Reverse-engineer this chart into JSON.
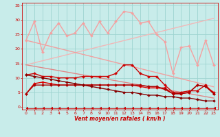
{
  "xlabel": "Vent moyen/en rafales ( km/h )",
  "xlim": [
    -0.5,
    23.5
  ],
  "ylim": [
    -1,
    36
  ],
  "yticks": [
    0,
    5,
    10,
    15,
    20,
    25,
    30,
    35
  ],
  "xticks": [
    0,
    1,
    2,
    3,
    4,
    5,
    6,
    7,
    8,
    9,
    10,
    11,
    12,
    13,
    14,
    15,
    16,
    17,
    18,
    19,
    20,
    21,
    22,
    23
  ],
  "bg_color": "#c8ecea",
  "grid_color": "#9dd4d0",
  "lines": [
    {
      "y": [
        14.5,
        15.2,
        15.9,
        16.6,
        17.3,
        18.0,
        18.7,
        19.4,
        20.1,
        20.8,
        21.5,
        22.2,
        22.9,
        23.6,
        24.3,
        25.0,
        25.7,
        26.4,
        27.1,
        27.8,
        28.5,
        29.2,
        29.9,
        30.6
      ],
      "color": "#f0b8b8",
      "lw": 1.0,
      "marker": null,
      "alpha": 1.0
    },
    {
      "y": [
        23.0,
        22.3,
        21.6,
        20.9,
        20.2,
        19.5,
        18.8,
        18.1,
        17.4,
        16.7,
        16.0,
        15.3,
        14.6,
        13.9,
        13.2,
        12.5,
        11.8,
        11.1,
        10.4,
        9.7,
        9.0,
        8.3,
        7.6,
        6.9
      ],
      "color": "#f0a0a0",
      "lw": 1.0,
      "marker": null,
      "alpha": 1.0
    },
    {
      "y": [
        14.5,
        14.0,
        13.5,
        13.0,
        12.5,
        12.0,
        11.5,
        11.0,
        10.5,
        10.0,
        9.5,
        9.0,
        8.5,
        8.0,
        7.5,
        7.0,
        6.5,
        6.0,
        5.5,
        5.0,
        4.5,
        4.0,
        3.5,
        3.0
      ],
      "color": "#e08888",
      "lw": 1.0,
      "marker": null,
      "alpha": 1.0
    },
    {
      "y": [
        23.0,
        29.5,
        19.0,
        25.5,
        29.0,
        24.5,
        25.5,
        29.0,
        24.5,
        29.5,
        25.5,
        29.5,
        33.0,
        32.5,
        29.0,
        29.5,
        25.0,
        22.5,
        11.5,
        20.5,
        21.0,
        14.5,
        23.0,
        14.5
      ],
      "color": "#f4a0a0",
      "lw": 1.0,
      "marker": "D",
      "ms": 2.0,
      "alpha": 1.0
    },
    {
      "y": [
        11.0,
        11.5,
        10.5,
        10.5,
        10.0,
        10.0,
        10.0,
        10.5,
        10.5,
        10.5,
        10.5,
        11.5,
        14.5,
        14.5,
        11.5,
        10.5,
        10.5,
        7.5,
        5.0,
        5.0,
        5.5,
        5.5,
        7.5,
        4.5
      ],
      "color": "#cc0000",
      "lw": 1.0,
      "marker": "D",
      "ms": 2.0,
      "alpha": 1.0
    },
    {
      "y": [
        4.5,
        8.0,
        8.5,
        8.0,
        7.5,
        7.5,
        7.5,
        7.5,
        7.5,
        7.5,
        7.5,
        7.5,
        7.5,
        7.5,
        7.0,
        6.5,
        6.5,
        6.5,
        4.5,
        4.5,
        5.0,
        7.5,
        7.0,
        5.0
      ],
      "color": "#dd0000",
      "lw": 1.0,
      "marker": "D",
      "ms": 2.0,
      "alpha": 1.0
    },
    {
      "y": [
        4.5,
        7.5,
        7.5,
        7.5,
        7.5,
        7.5,
        7.5,
        7.5,
        7.5,
        7.5,
        7.5,
        7.5,
        7.5,
        7.5,
        7.5,
        7.0,
        7.0,
        6.0,
        4.5,
        4.5,
        5.0,
        7.5,
        7.0,
        4.5
      ],
      "color": "#aa0000",
      "lw": 1.0,
      "marker": "D",
      "ms": 2.0,
      "alpha": 1.0
    },
    {
      "y": [
        11.0,
        10.5,
        10.0,
        9.5,
        9.0,
        8.5,
        8.0,
        7.5,
        7.0,
        6.5,
        6.0,
        5.5,
        5.0,
        5.0,
        4.5,
        4.0,
        4.0,
        3.5,
        3.5,
        3.0,
        3.0,
        2.5,
        2.0,
        2.0
      ],
      "color": "#880000",
      "lw": 1.0,
      "marker": "D",
      "ms": 2.0,
      "alpha": 1.0
    },
    {
      "y": [
        -0.5,
        -0.5,
        -0.5,
        -0.5,
        -0.5,
        -0.5,
        -0.5,
        -0.5,
        -0.5,
        -0.5,
        -0.5,
        -0.5,
        -0.5,
        -0.5,
        -0.5,
        -0.5,
        -0.5,
        -0.5,
        -0.5,
        -0.5,
        -0.5,
        -0.5,
        -0.5,
        -0.5
      ],
      "color": "#cc0000",
      "lw": 0.5,
      "marker": 4,
      "ms": 3.0,
      "alpha": 1.0
    }
  ]
}
